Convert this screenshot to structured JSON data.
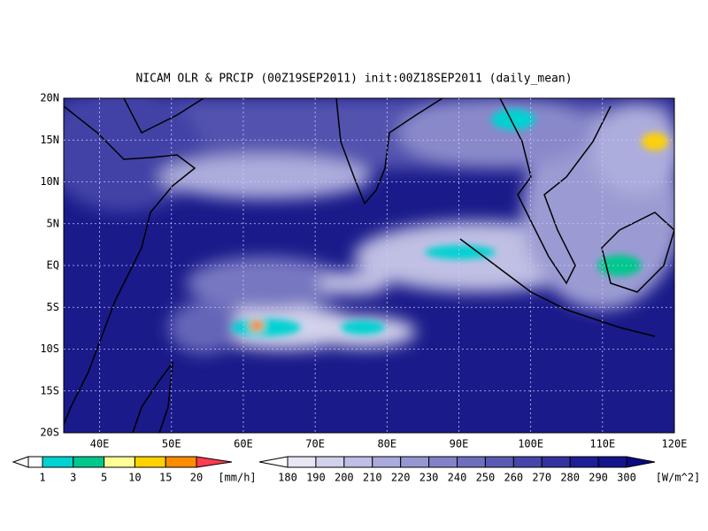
{
  "map": {
    "title": "NICAM OLR & PRCIP (00Z19SEP2011) init:00Z18SEP2011 (daily_mean)",
    "lat_labels": [
      "20N",
      "15N",
      "10N",
      "5N",
      "EQ",
      "5S",
      "10S",
      "15S",
      "20S"
    ],
    "lon_labels": [
      "40E",
      "50E",
      "60E",
      "70E",
      "80E",
      "90E",
      "100E",
      "110E",
      "120E"
    ]
  },
  "precip_legend": {
    "labels": [
      "1",
      "3",
      "5",
      "10",
      "15",
      "20"
    ],
    "unit": "[mm/h]",
    "colors": [
      "#ffffff",
      "#00d2d2",
      "#00c88c",
      "#ffff96",
      "#ffd200",
      "#ff8c00",
      "#ff3c50"
    ]
  },
  "olr_legend": {
    "labels": [
      "180",
      "190",
      "200",
      "210",
      "220",
      "230",
      "240",
      "250",
      "260",
      "270",
      "280",
      "290",
      "300"
    ],
    "unit": "[W/m^2]",
    "colors": [
      "#ffffff",
      "#e6e6f5",
      "#d2d2ee",
      "#bebee6",
      "#aaaadc",
      "#9696d2",
      "#8282c8",
      "#6e6ebe",
      "#5a5ab4",
      "#4646aa",
      "#3232a0",
      "#1e1e96",
      "#14148c",
      "#0a0a82"
    ]
  }
}
